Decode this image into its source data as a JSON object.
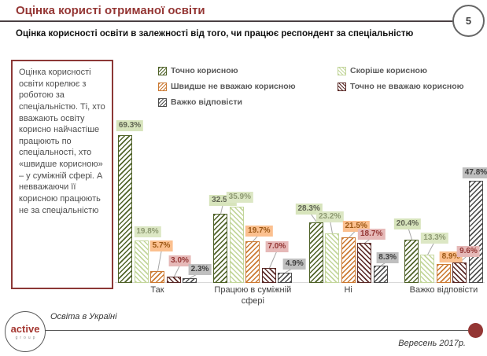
{
  "slide": {
    "title": "Оцінка користі отриманої освіти",
    "page_number": "5",
    "subtitle": "Оцінка корисності освіти в залежності від того, чи працює респондент за спеціальністю",
    "commentary": "Оцінка корисності освіти корелює з роботою за спеціальністю. Ті, хто вважають освіту корисно найчастіше працюють по спеціальності, хто «швидше корисною» – у суміжній сфері. А невважаючи її корисною працюють не за спеціальністю",
    "footer": {
      "logo_top": "active",
      "logo_bottom": "group",
      "series_label": "Освіта в Україні",
      "date": "Вересень 2017р."
    },
    "colors": {
      "title": "#943634",
      "accent_maroon": "#943634",
      "header_line": "#4b4143",
      "commentary_border": "#8c3836",
      "legend_text": "#595959"
    }
  },
  "chart_data": {
    "type": "bar",
    "title": "",
    "xlabel": "",
    "ylabel": "",
    "value_suffix": "%",
    "ylim": [
      0,
      75
    ],
    "grid": false,
    "legend_position": "top",
    "categories": [
      "Так",
      "Працюю в суміжній сфері",
      "Ні",
      "Важко відповісти"
    ],
    "series": [
      {
        "name": "Точно корисною",
        "values": [
          69.3,
          32.5,
          28.3,
          20.4
        ],
        "labels": [
          "69.3%",
          "32.5%",
          "28.3%",
          "20.4%"
        ],
        "color": "#4f6228",
        "hatch": "/",
        "label_bg": "#d7e4bc",
        "label_fg": "#5f6352"
      },
      {
        "name": "Скоріше корисною",
        "values": [
          19.8,
          35.9,
          23.2,
          13.3
        ],
        "labels": [
          "19.8%",
          "35.9%",
          "23.2%",
          "13.3%"
        ],
        "color": "#c3d69b",
        "hatch": "\\",
        "label_bg": "#dce7c4",
        "label_fg": "#8e9a72"
      },
      {
        "name": "Швидше не вважаю корисною",
        "values": [
          5.7,
          19.7,
          21.5,
          8.9
        ],
        "labels": [
          "5.7%",
          "19.7%",
          "21.5%",
          "8.9%"
        ],
        "color": "#cb7a33",
        "hatch": "/",
        "label_bg": "#fbc08f",
        "label_fg": "#9c5714"
      },
      {
        "name": "Точно не вважаю корисною",
        "values": [
          3.0,
          7.0,
          18.7,
          9.6
        ],
        "labels": [
          "3.0%",
          "7.0%",
          "18.7%",
          "9.6%"
        ],
        "color": "#5a2a27",
        "hatch": "\\",
        "label_bg": "#e6b9b8",
        "label_fg": "#943634"
      },
      {
        "name": "Важко відповісти",
        "values": [
          2.3,
          4.9,
          8.3,
          47.8
        ],
        "labels": [
          "2.3%",
          "4.9%",
          "8.3%",
          "47.8%"
        ],
        "color": "#4d4d4d",
        "hatch": "/",
        "label_bg": "#bfbfbf",
        "label_fg": "#404040"
      }
    ]
  }
}
